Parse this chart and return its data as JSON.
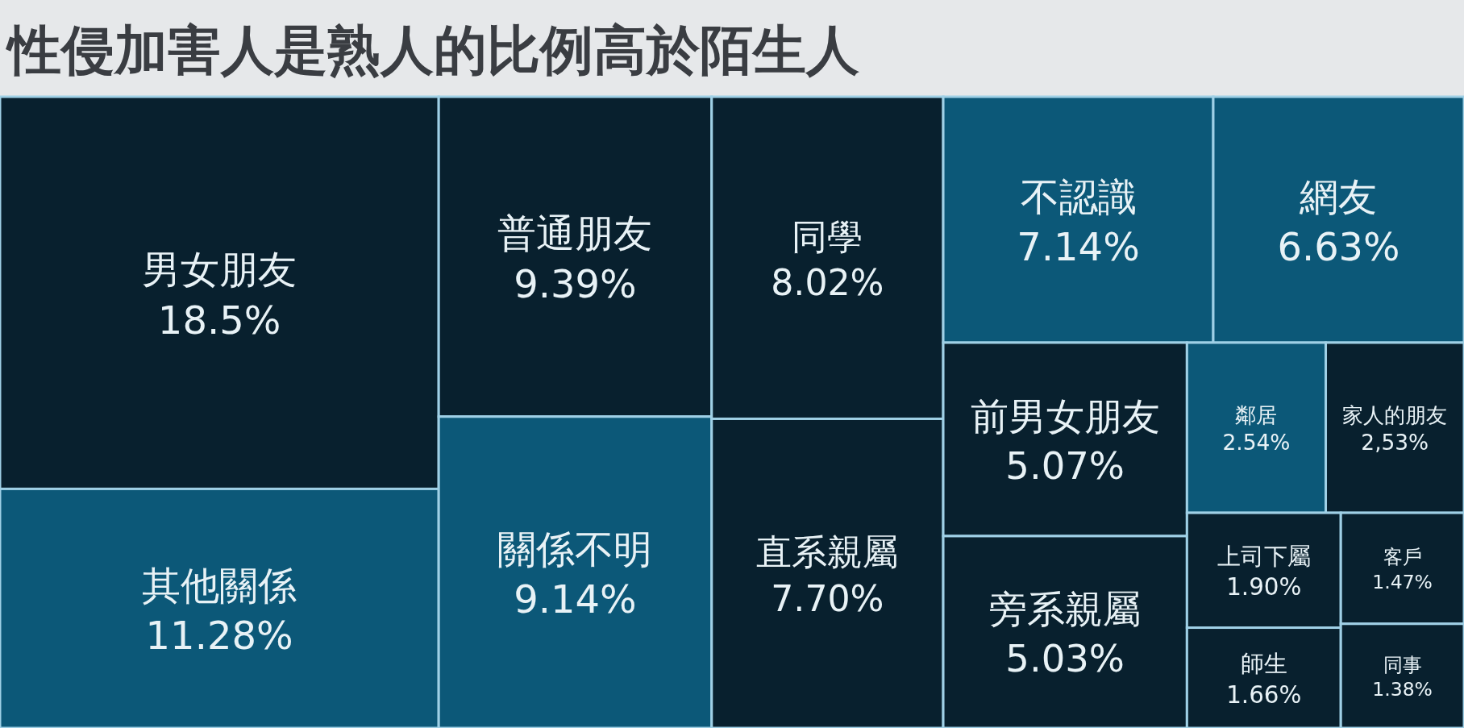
{
  "chart_data": {
    "type": "other",
    "title": "性侵加害人是熟人的比例高於陌生人",
    "categories": [
      "男女朋友",
      "其他關係",
      "普通朋友",
      "關係不明",
      "同學",
      "直系親屬",
      "不認識",
      "網友",
      "前男女朋友",
      "旁系親屬",
      "鄰居",
      "家人的朋友",
      "上司下屬",
      "師生",
      "客戶",
      "同事"
    ],
    "values": [
      18.5,
      11.28,
      9.39,
      9.14,
      8.02,
      7.7,
      7.14,
      6.63,
      5.07,
      5.03,
      2.54,
      2.53,
      1.9,
      1.66,
      1.47,
      1.38
    ],
    "value_labels": [
      "18.5%",
      "11.28%",
      "9.39%",
      "9.14%",
      "8.02%",
      "7.70%",
      "7.14%",
      "6.63%",
      "5.07%",
      "5.03%",
      "2.54%",
      "2,53%",
      "1.90%",
      "1.66%",
      "1.47%",
      "1.38%"
    ],
    "colors": [
      "#08202e",
      "#0c5878",
      "#08202e",
      "#0c5878",
      "#08202e",
      "#08202e",
      "#0c5878",
      "#0c5878",
      "#08202e",
      "#08202e",
      "#0c5878",
      "#08202e",
      "#08202e",
      "#08202e",
      "#08202e",
      "#08202e"
    ]
  }
}
